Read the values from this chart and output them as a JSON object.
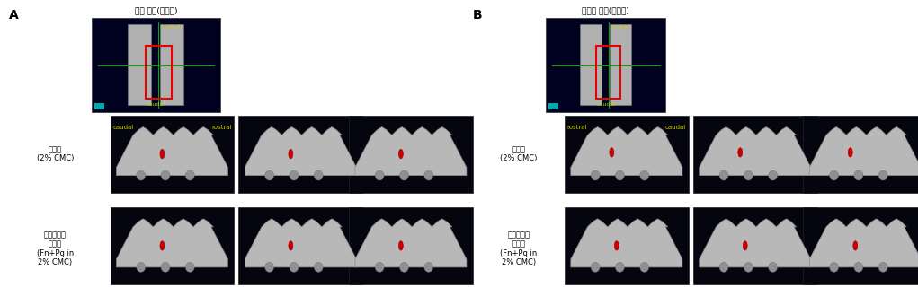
{
  "panel_A_label": "A",
  "panel_B_label": "B",
  "panel_A_title": "위턱 왼쪽(바깥쪽)",
  "panel_B_title": "아래턱 왼쪽(바깥쪽)",
  "row1_label": "대조군\n(2% CMC)",
  "row2_label": "구강미생물\n감염군\n(Fn+Pg in\n2% CMC)",
  "bg_color": "#000000",
  "bone_color_light": "#c8c8c8",
  "bone_color_mid": "#a0a0a0",
  "bone_color_dark": "#707070",
  "red_dot_color": "#cc0000",
  "yellow_text_color": "#cccc00",
  "white_color": "#ffffff",
  "figure_bg": "#ffffff",
  "overview_bg": "#000033",
  "text_color": "#000000",
  "rostral_label": "rostral",
  "caudal_label": "caudal",
  "font_size_label": 7,
  "font_size_row": 6,
  "font_size_panel": 10
}
